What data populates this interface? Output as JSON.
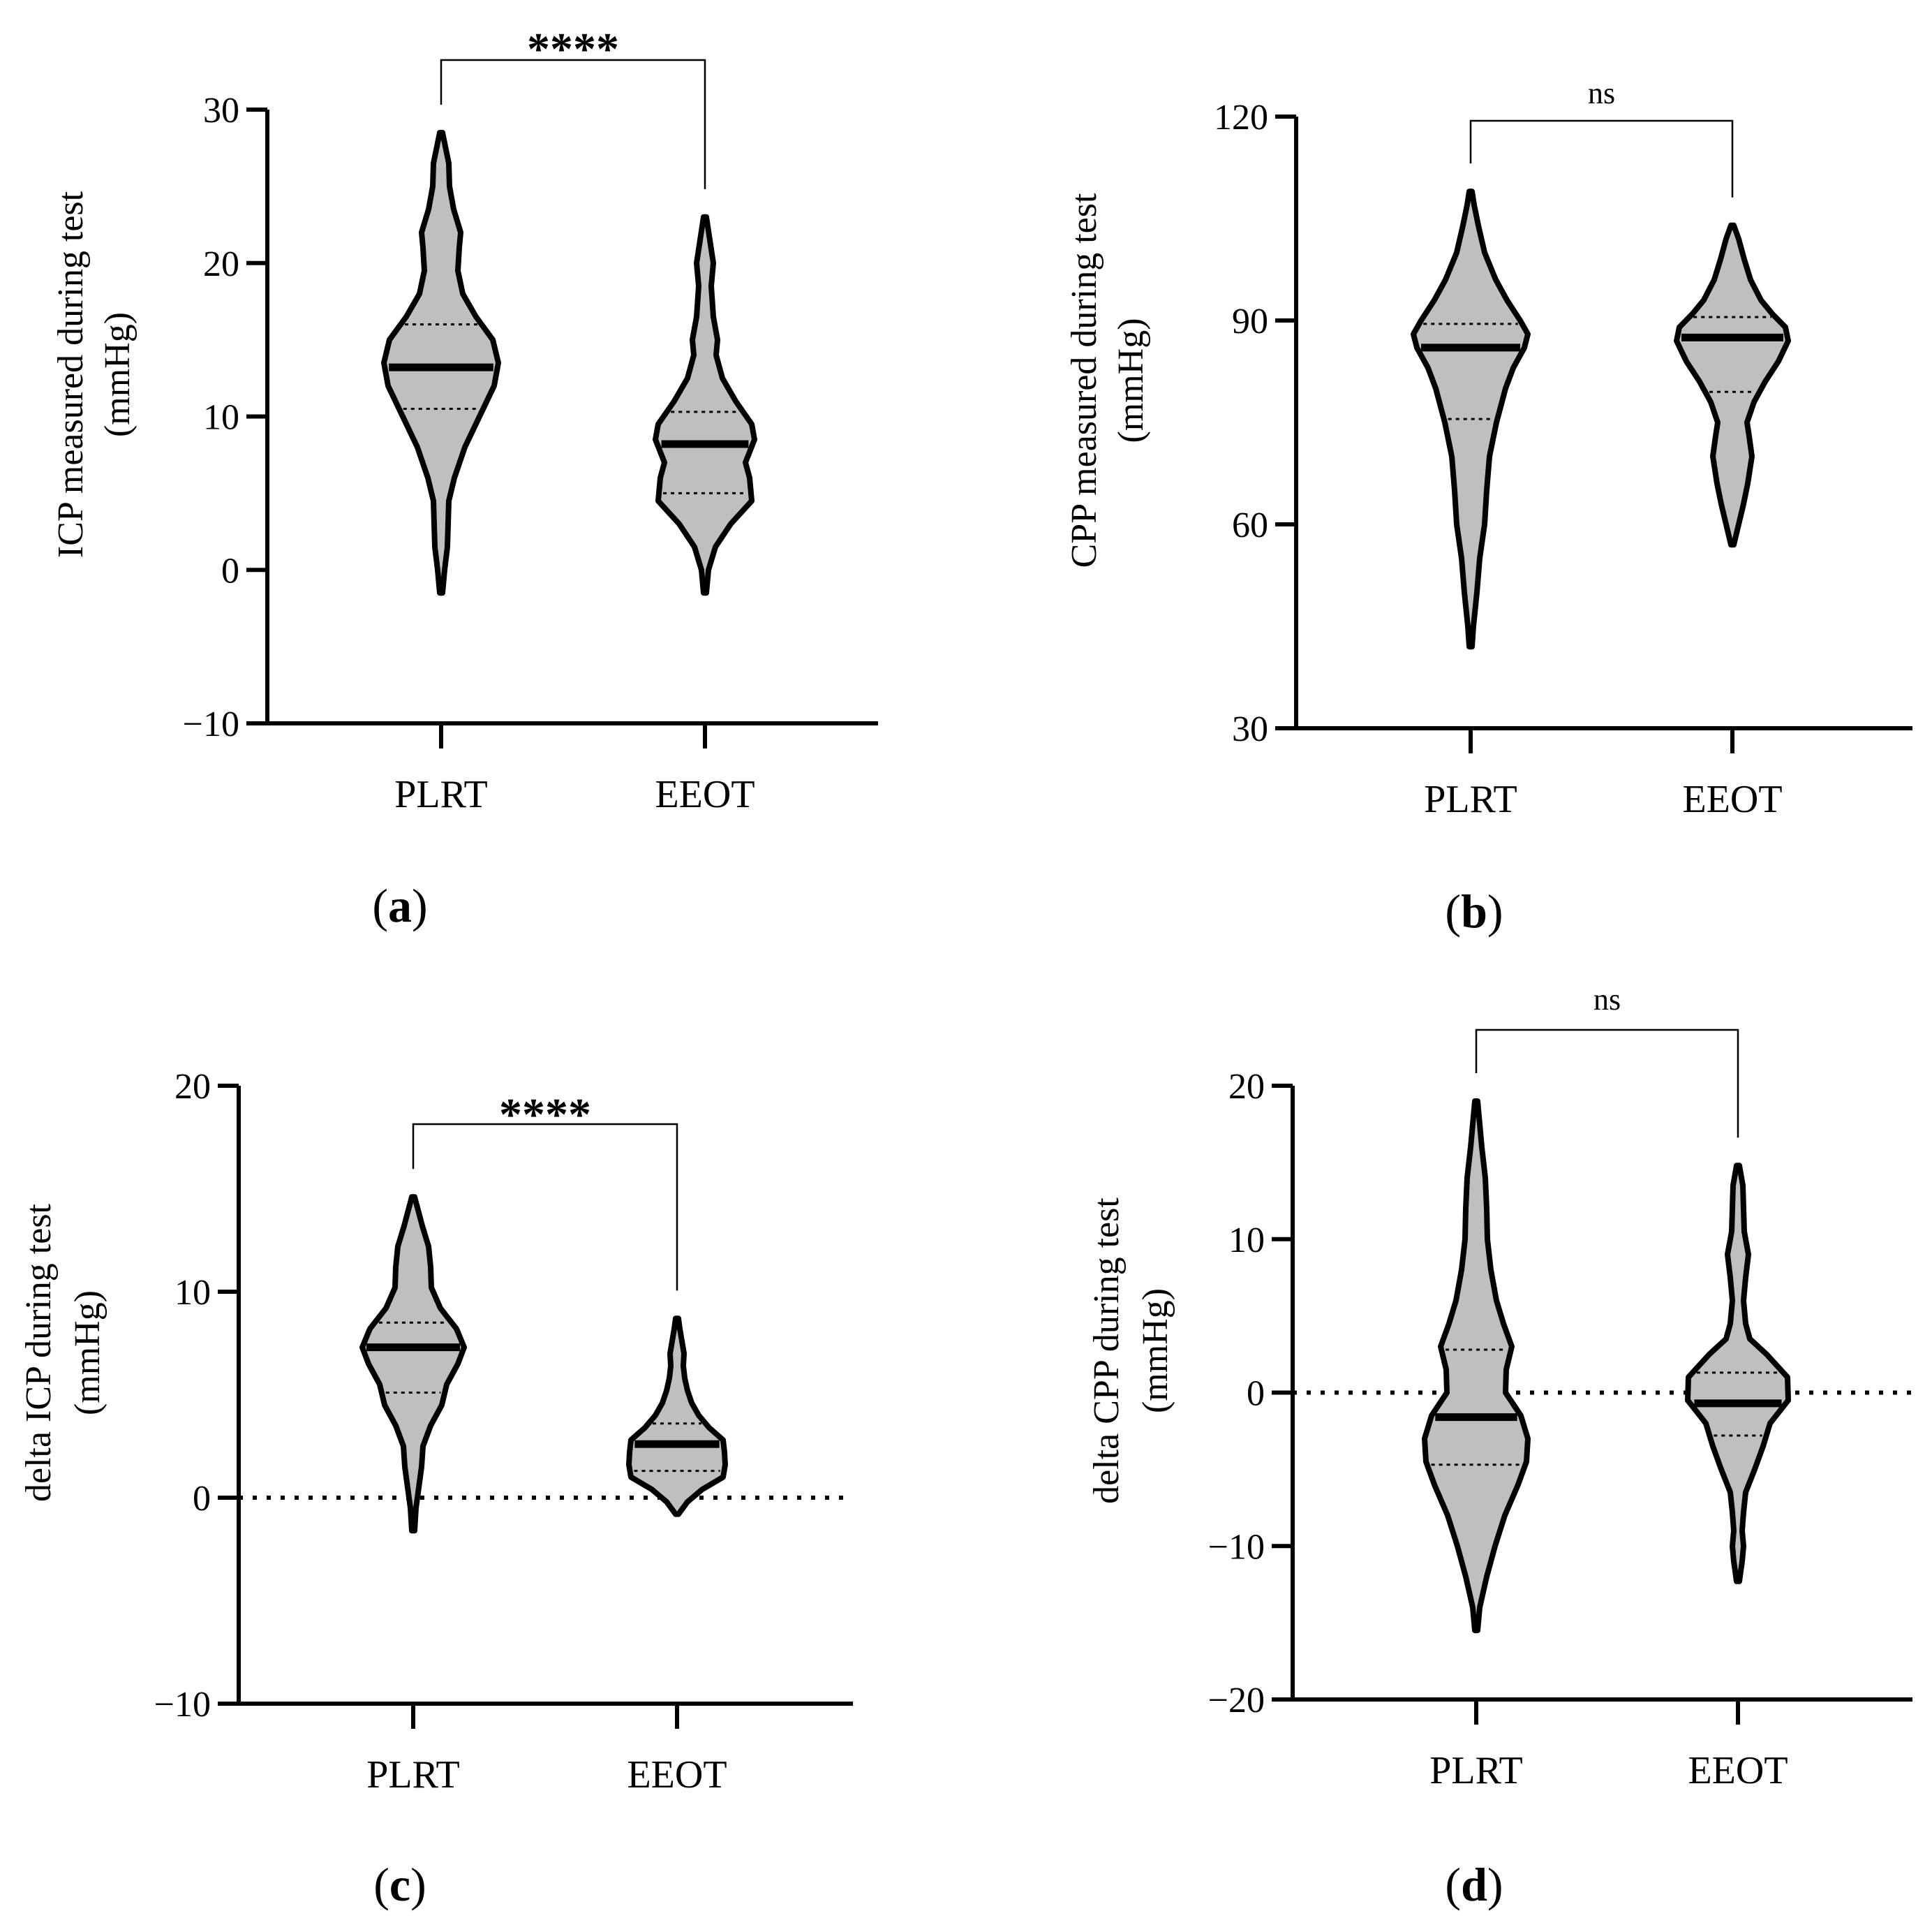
{
  "figure": {
    "chart_data": [
      {
        "id": "a",
        "type": "violin",
        "panel_label": "a",
        "ylabel_line1": "ICP measured during test",
        "ylabel_line2": "(mmHg)",
        "ylim": [
          -10,
          30
        ],
        "yticks": [
          30,
          20,
          10,
          0,
          -10
        ],
        "ytick_labels": [
          "30",
          "20",
          "10",
          "0",
          "−10"
        ],
        "categories": [
          "PLRT",
          "EEOT"
        ],
        "significance": "****",
        "zero_line": false,
        "violins": [
          {
            "name": "PLRT",
            "min": -1.5,
            "max": 28.5,
            "median": 13.2,
            "q1": 10.5,
            "q3": 16.0,
            "profile": [
              [
                -1.5,
                0.2
              ],
              [
                0,
                0.5
              ],
              [
                1.5,
                0.9
              ],
              [
                3,
                1.0
              ],
              [
                4.5,
                1.1
              ],
              [
                6,
                1.9
              ],
              [
                8,
                3.4
              ],
              [
                10,
                5.5
              ],
              [
                12,
                7.6
              ],
              [
                13.5,
                8.2
              ],
              [
                15,
                7.4
              ],
              [
                16.5,
                5.0
              ],
              [
                18,
                3.1
              ],
              [
                19.5,
                2.4
              ],
              [
                21,
                2.6
              ],
              [
                22,
                2.8
              ],
              [
                23.5,
                1.8
              ],
              [
                25,
                1.2
              ],
              [
                26.5,
                1.1
              ],
              [
                28.5,
                0.2
              ]
            ]
          },
          {
            "name": "EEOT",
            "min": -1.5,
            "max": 23,
            "median": 8.2,
            "q1": 5.0,
            "q3": 10.3,
            "profile": [
              [
                -1.5,
                0.2
              ],
              [
                0,
                0.5
              ],
              [
                1.5,
                1.5
              ],
              [
                3,
                3.7
              ],
              [
                4.5,
                6.7
              ],
              [
                6,
                6.4
              ],
              [
                7,
                5.8
              ],
              [
                8.5,
                7.1
              ],
              [
                9.5,
                6.7
              ],
              [
                11,
                4.4
              ],
              [
                12.5,
                2.5
              ],
              [
                14,
                1.6
              ],
              [
                15,
                1.8
              ],
              [
                16.5,
                1.2
              ],
              [
                18.5,
                0.9
              ],
              [
                20,
                1.2
              ],
              [
                21.5,
                0.7
              ],
              [
                23,
                0.2
              ]
            ]
          }
        ]
      },
      {
        "id": "b",
        "type": "violin",
        "panel_label": "b",
        "ylabel_line1": "CPP measured during test",
        "ylabel_line2": "(mmHg)",
        "ylim": [
          30,
          120
        ],
        "yticks": [
          120,
          90,
          60,
          30
        ],
        "ytick_labels": [
          "120",
          "90",
          "60",
          "30"
        ],
        "categories": [
          "PLRT",
          "EEOT"
        ],
        "significance": "ns",
        "zero_line": false,
        "violins": [
          {
            "name": "PLRT",
            "min": 42,
            "max": 109,
            "median": 86,
            "q1": 75.5,
            "q3": 89.5,
            "profile": [
              [
                42,
                0.2
              ],
              [
                45,
                0.4
              ],
              [
                50,
                0.9
              ],
              [
                55,
                1.3
              ],
              [
                60,
                2.0
              ],
              [
                65,
                2.3
              ],
              [
                70,
                2.7
              ],
              [
                75,
                3.7
              ],
              [
                80,
                5.0
              ],
              [
                83,
                6.1
              ],
              [
                86,
                7.7
              ],
              [
                88,
                8.2
              ],
              [
                90,
                7.1
              ],
              [
                93,
                5.2
              ],
              [
                96,
                3.6
              ],
              [
                100,
                2.0
              ],
              [
                104,
                1.1
              ],
              [
                107,
                0.5
              ],
              [
                109,
                0.2
              ]
            ]
          },
          {
            "name": "EEOT",
            "min": 57,
            "max": 104,
            "median": 87.5,
            "q1": 79.5,
            "q3": 90.5,
            "profile": [
              [
                57,
                0.2
              ],
              [
                60,
                0.9
              ],
              [
                63,
                1.6
              ],
              [
                66,
                2.2
              ],
              [
                70,
                2.8
              ],
              [
                73,
                2.4
              ],
              [
                75,
                2.1
              ],
              [
                78,
                3.1
              ],
              [
                81,
                4.7
              ],
              [
                84,
                6.6
              ],
              [
                87,
                8.0
              ],
              [
                89,
                7.6
              ],
              [
                91,
                5.7
              ],
              [
                93,
                4.1
              ],
              [
                96,
                2.6
              ],
              [
                99,
                1.7
              ],
              [
                102,
                0.9
              ],
              [
                104,
                0.2
              ]
            ]
          }
        ]
      },
      {
        "id": "c",
        "type": "violin",
        "panel_label": "c",
        "ylabel_line1": "delta ICP during test",
        "ylabel_line2": "(mmHg)",
        "ylim": [
          -10,
          20
        ],
        "yticks": [
          20,
          10,
          0,
          -10
        ],
        "ytick_labels": [
          "20",
          "10",
          "0",
          "−10"
        ],
        "categories": [
          "PLRT",
          "EEOT"
        ],
        "significance": "****",
        "zero_line": true,
        "violins": [
          {
            "name": "PLRT",
            "min": -1.6,
            "max": 14.6,
            "median": 7.3,
            "q1": 5.1,
            "q3": 8.5,
            "profile": [
              [
                -1.6,
                0.2
              ],
              [
                -0.5,
                0.4
              ],
              [
                0.5,
                0.8
              ],
              [
                1.5,
                1.2
              ],
              [
                2.5,
                1.4
              ],
              [
                3.5,
                2.5
              ],
              [
                4.5,
                4.1
              ],
              [
                5.5,
                4.8
              ],
              [
                6.5,
                6.4
              ],
              [
                7.3,
                7.3
              ],
              [
                8.2,
                6.2
              ],
              [
                9.2,
                3.9
              ],
              [
                10.2,
                2.6
              ],
              [
                11.2,
                2.5
              ],
              [
                12.2,
                2.2
              ],
              [
                13.2,
                1.3
              ],
              [
                14.6,
                0.2
              ]
            ]
          },
          {
            "name": "EEOT",
            "min": -0.8,
            "max": 8.7,
            "median": 2.6,
            "q1": 1.3,
            "q3": 3.6,
            "profile": [
              [
                -0.8,
                0.2
              ],
              [
                -0.2,
                1.5
              ],
              [
                0.4,
                3.6
              ],
              [
                1.0,
                6.6
              ],
              [
                1.6,
                6.9
              ],
              [
                2.2,
                6.8
              ],
              [
                2.8,
                6.6
              ],
              [
                3.4,
                4.6
              ],
              [
                4.0,
                3.1
              ],
              [
                4.6,
                2.1
              ],
              [
                5.2,
                1.5
              ],
              [
                5.8,
                1.1
              ],
              [
                6.4,
                0.9
              ],
              [
                7.0,
                1.0
              ],
              [
                7.6,
                0.7
              ],
              [
                8.2,
                0.4
              ],
              [
                8.7,
                0.2
              ]
            ]
          }
        ]
      },
      {
        "id": "d",
        "type": "violin",
        "panel_label": "d",
        "ylabel_line1": "delta CPP during test",
        "ylabel_line2": "(mmHg)",
        "ylim": [
          -20,
          20
        ],
        "yticks": [
          20,
          10,
          0,
          -10,
          -20
        ],
        "ytick_labels": [
          "20",
          "10",
          "0",
          "−10",
          "−20"
        ],
        "categories": [
          "PLRT",
          "EEOT"
        ],
        "significance": "ns",
        "zero_line": true,
        "violins": [
          {
            "name": "PLRT",
            "min": -15.5,
            "max": 19,
            "median": -1.6,
            "q1": -4.7,
            "q3": 2.8,
            "profile": [
              [
                -15.5,
                0.2
              ],
              [
                -14,
                0.5
              ],
              [
                -12,
                1.5
              ],
              [
                -10,
                2.7
              ],
              [
                -8,
                4.1
              ],
              [
                -6,
                6.0
              ],
              [
                -4.5,
                7.2
              ],
              [
                -3,
                7.4
              ],
              [
                -1.5,
                6.4
              ],
              [
                0,
                4.2
              ],
              [
                1.5,
                4.3
              ],
              [
                3,
                5.1
              ],
              [
                4.5,
                3.9
              ],
              [
                6,
                2.9
              ],
              [
                8,
                2.1
              ],
              [
                10,
                1.6
              ],
              [
                12,
                1.5
              ],
              [
                14,
                1.3
              ],
              [
                16,
                0.8
              ],
              [
                18,
                0.4
              ],
              [
                19,
                0.2
              ]
            ]
          },
          {
            "name": "EEOT",
            "min": -12.3,
            "max": 14.8,
            "median": -0.7,
            "q1": -2.8,
            "q3": 1.3,
            "profile": [
              [
                -12.3,
                0.2
              ],
              [
                -11,
                0.6
              ],
              [
                -10,
                0.8
              ],
              [
                -9,
                0.6
              ],
              [
                -7.8,
                0.8
              ],
              [
                -6.5,
                1.1
              ],
              [
                -5,
                2.4
              ],
              [
                -3.5,
                3.6
              ],
              [
                -2,
                4.6
              ],
              [
                -0.5,
                7.2
              ],
              [
                1,
                7.1
              ],
              [
                2.5,
                4.1
              ],
              [
                3.5,
                1.7
              ],
              [
                4.5,
                1.1
              ],
              [
                6,
                0.8
              ],
              [
                7.5,
                1.1
              ],
              [
                9,
                1.5
              ],
              [
                10.5,
                0.9
              ],
              [
                12,
                0.8
              ],
              [
                13.5,
                0.7
              ],
              [
                14.8,
                0.2
              ]
            ]
          }
        ]
      }
    ]
  }
}
